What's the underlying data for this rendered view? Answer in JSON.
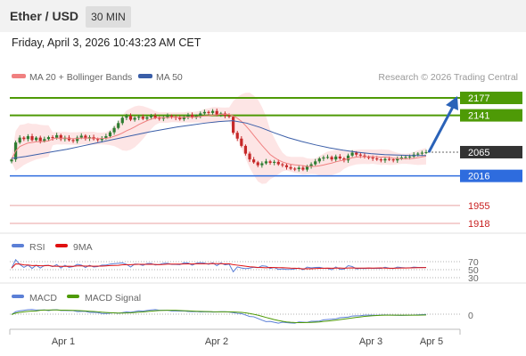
{
  "header": {
    "symbol": "Ether / USD",
    "timeframe": "30 MIN"
  },
  "datetime": "Friday, April 3, 2026 10:43:23 AM CET",
  "copyright": "Research © 2026 Trading Central",
  "colors": {
    "resistance": "#4e9a06",
    "support": "#2e6cde",
    "weak_level": "#e8a0a0",
    "weak_text": "#c81e1e",
    "last_price": "#333333",
    "candle_up": "#2e7d32",
    "candle_down": "#c62828",
    "bollinger": "#f08080",
    "ma50": "#3a5ea8",
    "rsi": "#5b7fd6",
    "rsi_ma": "#e01010",
    "macd": "#5b7fd6",
    "macd_signal": "#4e9a06",
    "arrow": "#2a62b8"
  },
  "chart_data": [
    {
      "type": "candlestick",
      "title": "Ether / USD",
      "timeframe": "30 MIN",
      "legend": [
        {
          "name": "MA 20 + Bollinger Bands",
          "color": "#f08080"
        },
        {
          "name": "MA 50",
          "color": "#3a5ea8"
        }
      ],
      "x_ticks": [
        "Apr 1",
        "Apr 2",
        "Apr 3",
        "Apr 5"
      ],
      "y_range": [
        1900,
        2200
      ],
      "levels": [
        {
          "value": 2177,
          "label": "2177",
          "kind": "resistance"
        },
        {
          "value": 2141,
          "label": "2141",
          "kind": "resistance"
        },
        {
          "value": 2065,
          "label": "2065",
          "kind": "last"
        },
        {
          "value": 2016,
          "label": "2016",
          "kind": "support"
        },
        {
          "value": 1955,
          "label": "1955",
          "kind": "weak"
        },
        {
          "value": 1918,
          "label": "1918",
          "kind": "weak"
        }
      ],
      "series_close": [
        2050,
        2085,
        2095,
        2092,
        2098,
        2090,
        2095,
        2088,
        2092,
        2096,
        2094,
        2100,
        2092,
        2095,
        2090,
        2088,
        2095,
        2099,
        2093,
        2096,
        2092,
        2090,
        2094,
        2098,
        2106,
        2115,
        2125,
        2136,
        2140,
        2132,
        2136,
        2138,
        2134,
        2137,
        2140,
        2136,
        2134,
        2137,
        2140,
        2138,
        2136,
        2133,
        2138,
        2142,
        2137,
        2140,
        2145,
        2148,
        2146,
        2150,
        2142,
        2145,
        2140,
        2138,
        2105,
        2093,
        2078,
        2062,
        2050,
        2044,
        2038,
        2042,
        2046,
        2043,
        2045,
        2040,
        2038,
        2034,
        2031,
        2030,
        2033,
        2029,
        2036,
        2040,
        2046,
        2052,
        2054,
        2055,
        2050,
        2056,
        2052,
        2048,
        2058,
        2064,
        2060,
        2058,
        2055,
        2054,
        2052,
        2050,
        2048,
        2051,
        2050,
        2048,
        2052,
        2054,
        2055,
        2056,
        2060,
        2062,
        2064,
        2065
      ],
      "ma50": [
        2052,
        2056,
        2061,
        2066,
        2071,
        2077,
        2083,
        2089,
        2095,
        2101,
        2107,
        2112,
        2117,
        2121,
        2125,
        2128,
        2130,
        2125,
        2116,
        2105,
        2095,
        2087,
        2080,
        2074,
        2069,
        2065,
        2062,
        2060,
        2059,
        2058,
        2058
      ],
      "rsi": {
        "legend": [
          {
            "name": "RSI",
            "color": "#5b7fd6"
          },
          {
            "name": "9MA",
            "color": "#e01010"
          }
        ],
        "ticks": [
          "70",
          "50",
          "30"
        ]
      },
      "macd": {
        "legend": [
          {
            "name": "MACD",
            "color": "#5b7fd6"
          },
          {
            "name": "MACD Signal",
            "color": "#4e9a06"
          }
        ],
        "ticks": [
          "0"
        ]
      }
    }
  ]
}
